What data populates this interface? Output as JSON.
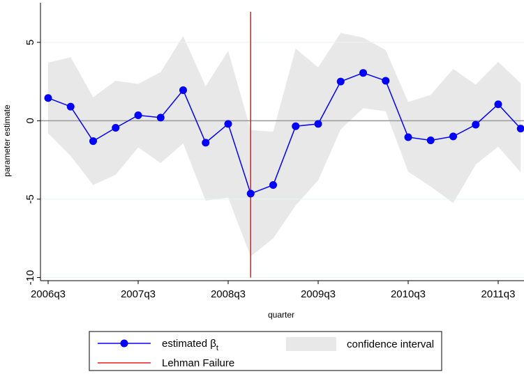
{
  "chart_data": {
    "type": "line",
    "x_label": "quarter",
    "y_label": "parameter estimate",
    "categories": [
      "2006q3",
      null,
      null,
      null,
      "2007q3",
      null,
      null,
      null,
      "2008q3",
      null,
      null,
      null,
      "2009q3",
      null,
      null,
      null,
      "2010q3",
      null,
      null,
      null,
      "2011q3",
      null
    ],
    "series": [
      {
        "name": "estimated β",
        "name_sub": "t",
        "color": "#0000ff",
        "values": [
          1.45,
          0.9,
          -1.3,
          -0.45,
          0.35,
          0.2,
          1.95,
          -1.4,
          -0.2,
          -4.65,
          -4.1,
          -0.35,
          -0.2,
          2.5,
          3.05,
          2.55,
          -1.05,
          -1.25,
          -1.0,
          -0.25,
          1.05,
          -0.5
        ]
      }
    ],
    "band": {
      "name": "confidence interval",
      "color": "#e8e8e8",
      "upper": [
        3.7,
        4.05,
        1.5,
        2.55,
        2.35,
        3.1,
        5.4,
        2.2,
        4.45,
        -0.6,
        -0.7,
        4.6,
        3.4,
        5.6,
        5.3,
        4.5,
        1.2,
        1.65,
        3.3,
        2.3,
        3.75,
        2.4
      ],
      "lower": [
        -0.8,
        -2.25,
        -4.1,
        -3.45,
        -1.7,
        -2.7,
        -1.45,
        -5.1,
        -4.9,
        -8.65,
        -7.5,
        -5.4,
        -3.8,
        -0.55,
        0.8,
        0.6,
        -3.25,
        -4.2,
        -5.25,
        -2.8,
        -1.65,
        -3.3
      ]
    },
    "vline": {
      "name": "Lehman Failure",
      "at": "2008q4",
      "color": "#e8191b"
    },
    "yline": 0,
    "ylim": [
      -10.2,
      7.7
    ],
    "yticks": [
      -10,
      -5,
      0,
      5
    ],
    "grid": true
  }
}
